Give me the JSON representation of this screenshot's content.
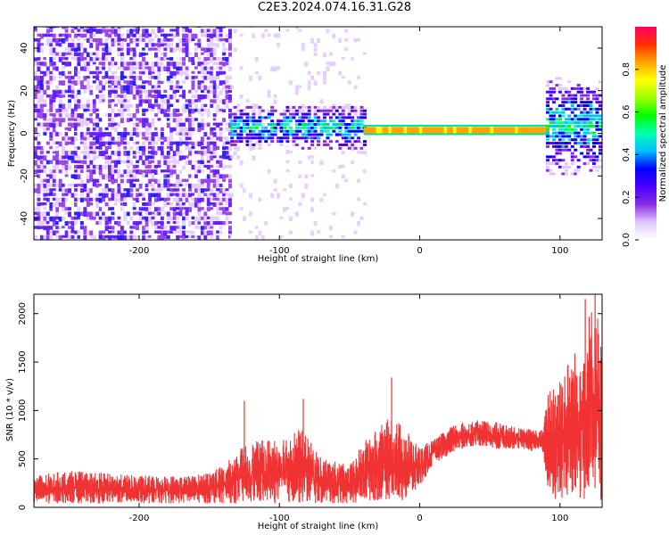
{
  "title": "C2E3.2024.074.16.31.G28",
  "chart_data": [
    {
      "type": "heatmap",
      "name": "spectrogram",
      "xlabel": "Height of straight line (km)",
      "ylabel": "Frequency (Hz)",
      "xlim": [
        -275,
        130
      ],
      "ylim": [
        -50,
        50
      ],
      "xticks": [
        -200,
        -100,
        0,
        100
      ],
      "yticks": [
        -40,
        -20,
        0,
        20,
        40
      ],
      "colorbar": {
        "label": "Normalized spectral amplitude",
        "range": [
          0,
          1
        ],
        "ticks": [
          "0.0",
          "0.2",
          "0.4",
          "0.6",
          "0.8"
        ],
        "tick_values": [
          0.0,
          0.2,
          0.4,
          0.6,
          0.8
        ],
        "colors": [
          "#ffffff",
          "#e0c8ff",
          "#8a2be2",
          "#4b00ff",
          "#0000ff",
          "#00bfff",
          "#00ffb0",
          "#00ff00",
          "#a0ff00",
          "#ffff00",
          "#ffa500",
          "#ff3000",
          "#ff0066"
        ]
      },
      "regions": [
        {
          "x": [
            -275,
            -135
          ],
          "freq_band": [
            -50,
            50
          ],
          "amplitude": 0.25,
          "pattern": "noise"
        },
        {
          "x": [
            -135,
            -40
          ],
          "freq_band": [
            -50,
            50
          ],
          "amplitude": 0.1,
          "pattern": "sparse-noise"
        },
        {
          "x": [
            -135,
            -40
          ],
          "freq_band": [
            -8,
            12
          ],
          "amplitude": 0.4,
          "pattern": "band"
        },
        {
          "x": [
            -40,
            90
          ],
          "freq_band": [
            0,
            3
          ],
          "amplitude": 0.9,
          "pattern": "carrier"
        },
        {
          "x": [
            90,
            130
          ],
          "freq_band": [
            -20,
            25
          ],
          "amplitude": 0.4,
          "pattern": "band"
        }
      ]
    },
    {
      "type": "line",
      "name": "snr",
      "xlabel": "Height of straight line (km)",
      "ylabel": "SNR (10 * v/v)",
      "xlim": [
        -275,
        130
      ],
      "ylim": [
        0,
        2200
      ],
      "xticks": [
        -200,
        -100,
        0,
        100
      ],
      "yticks": [
        0,
        500,
        1000,
        1500,
        2000
      ],
      "color": "#f03232",
      "envelope": [
        {
          "x": -275,
          "low": 40,
          "high": 330
        },
        {
          "x": -250,
          "low": 40,
          "high": 380
        },
        {
          "x": -200,
          "low": 40,
          "high": 330
        },
        {
          "x": -160,
          "low": 40,
          "high": 330
        },
        {
          "x": -140,
          "low": 40,
          "high": 430
        },
        {
          "x": -125,
          "low": 40,
          "high": 650
        },
        {
          "x": -105,
          "low": 40,
          "high": 720
        },
        {
          "x": -85,
          "low": 40,
          "high": 820
        },
        {
          "x": -70,
          "low": 40,
          "high": 520
        },
        {
          "x": -50,
          "low": 40,
          "high": 430
        },
        {
          "x": -40,
          "low": 60,
          "high": 680
        },
        {
          "x": -20,
          "low": 80,
          "high": 950
        },
        {
          "x": -10,
          "low": 60,
          "high": 820
        },
        {
          "x": 0,
          "low": 200,
          "high": 620
        },
        {
          "x": 10,
          "low": 450,
          "high": 700
        },
        {
          "x": 25,
          "low": 580,
          "high": 860
        },
        {
          "x": 40,
          "low": 640,
          "high": 900
        },
        {
          "x": 55,
          "low": 600,
          "high": 880
        },
        {
          "x": 70,
          "low": 600,
          "high": 820
        },
        {
          "x": 88,
          "low": 560,
          "high": 800
        },
        {
          "x": 92,
          "low": 50,
          "high": 1300
        },
        {
          "x": 110,
          "low": 50,
          "high": 1600
        },
        {
          "x": 125,
          "low": 50,
          "high": 2200
        },
        {
          "x": 130,
          "low": 50,
          "high": 1700
        }
      ],
      "peaks": [
        {
          "x": -125,
          "y": 1100
        },
        {
          "x": -83,
          "y": 1120
        },
        {
          "x": -20,
          "y": 1340
        },
        {
          "x": 118,
          "y": 2150
        },
        {
          "x": 125,
          "y": 2200
        }
      ]
    }
  ]
}
